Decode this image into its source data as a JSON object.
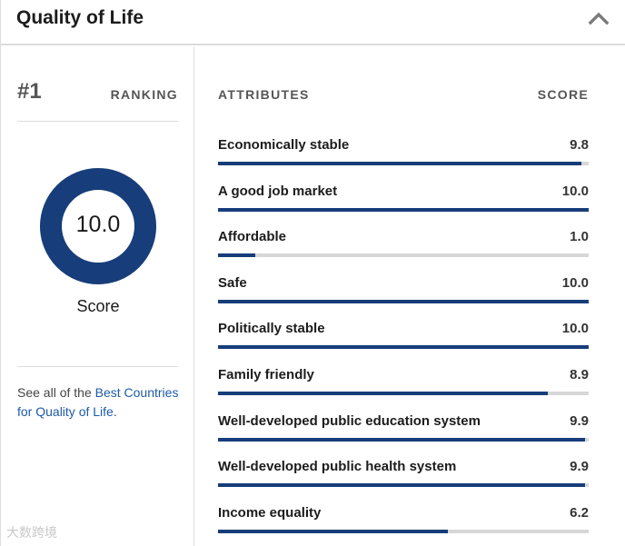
{
  "header": {
    "title": "Quality of Life"
  },
  "ranking": {
    "rank": "#1",
    "label": "RANKING"
  },
  "score": {
    "value": "10.0",
    "fraction": 1.0,
    "label": "Score",
    "ring_color": "#173d7a"
  },
  "see_all": {
    "prefix": "See all of the ",
    "link": "Best Countries for Quality of Life",
    "suffix": "."
  },
  "attributes": {
    "header": "ATTRIBUTES",
    "score_header": "SCORE",
    "items": [
      {
        "name": "Economically stable",
        "score": "9.8",
        "fraction": 0.98
      },
      {
        "name": "A good job market",
        "score": "10.0",
        "fraction": 1.0
      },
      {
        "name": "Affordable",
        "score": "1.0",
        "fraction": 0.1
      },
      {
        "name": "Safe",
        "score": "10.0",
        "fraction": 1.0
      },
      {
        "name": "Politically stable",
        "score": "10.0",
        "fraction": 1.0
      },
      {
        "name": "Family friendly",
        "score": "8.9",
        "fraction": 0.89
      },
      {
        "name": "Well-developed public education system",
        "score": "9.9",
        "fraction": 0.99
      },
      {
        "name": "Well-developed public health system",
        "score": "9.9",
        "fraction": 0.99
      },
      {
        "name": "Income equality",
        "score": "6.2",
        "fraction": 0.62
      }
    ]
  },
  "colors": {
    "bar_fill": "#173d7a",
    "bar_track": "#d7d7d7",
    "link": "#1e5ba8"
  },
  "watermark": {
    "text": "大数跨境"
  }
}
